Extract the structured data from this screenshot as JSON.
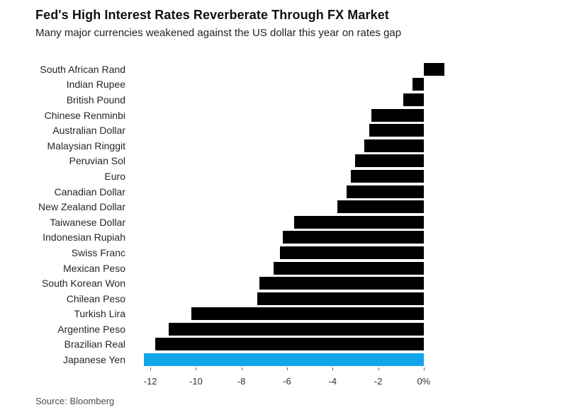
{
  "chart_data": {
    "type": "bar",
    "orientation": "horizontal",
    "title": "Fed's High Interest Rates Reverberate Through FX Market",
    "subtitle": "Many major currencies weakened against the US dollar this year on rates gap",
    "source": "Source: Bloomberg",
    "unit": "%",
    "categories": [
      "South African Rand",
      "Indian Rupee",
      "British Pound",
      "Chinese Renminbi",
      "Australian Dollar",
      "Malaysian Ringgit",
      "Peruvian Sol",
      "Euro",
      "Canadian Dollar",
      "New Zealand Dollar",
      "Taiwanese Dollar",
      "Indonesian Rupiah",
      "Swiss Franc",
      "Mexican Peso",
      "South Korean Won",
      "Chilean Peso",
      "Turkish Lira",
      "Argentine Peso",
      "Brazilian Real",
      "Japanese Yen"
    ],
    "values": [
      0.9,
      -0.5,
      -0.9,
      -2.3,
      -2.4,
      -2.6,
      -3.0,
      -3.2,
      -3.4,
      -3.8,
      -5.7,
      -6.2,
      -6.3,
      -6.6,
      -7.2,
      -7.3,
      -10.2,
      -11.2,
      -11.8,
      -12.3
    ],
    "xlim": [
      -13,
      1
    ],
    "xticks": [
      -12,
      -10,
      -8,
      -6,
      -4,
      -2,
      0
    ],
    "xtick_labels": [
      "-12",
      "-10",
      "-8",
      "-6",
      "-4",
      "-2",
      "0%"
    ],
    "bar_color": "#000000",
    "highlight_color": "#12a5ea",
    "highlight_category": "Japanese Yen",
    "grid": false,
    "legend": false
  }
}
